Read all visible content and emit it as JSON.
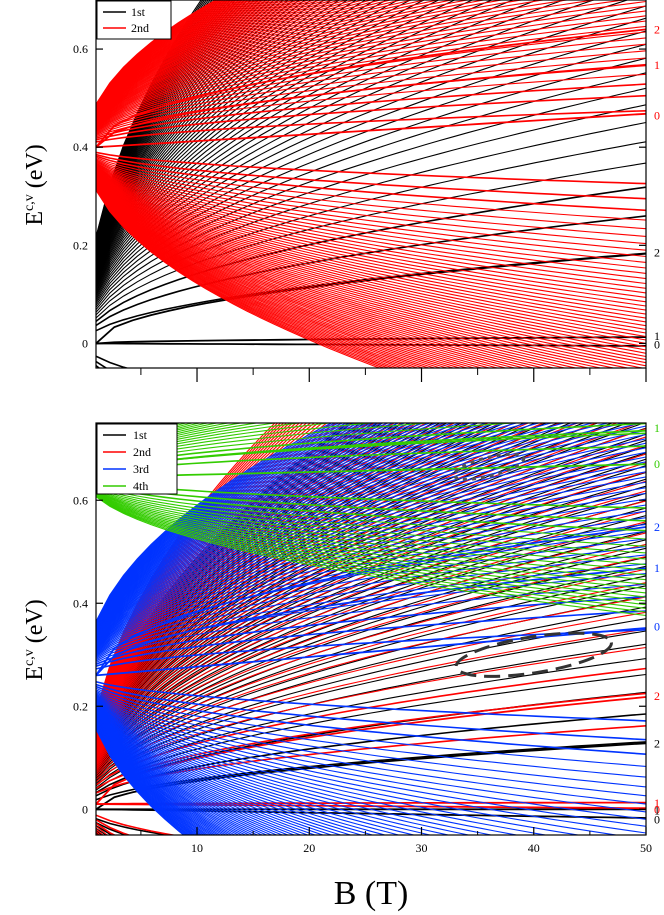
{
  "chart_data": [
    {
      "type": "line",
      "title": "",
      "xlabel": "",
      "ylabel": "E",
      "ylabel_sup": "c,v",
      "ylabel_unit": " (eV)",
      "xlim": [
        1,
        50
      ],
      "ylim": [
        -0.05,
        0.7
      ],
      "x_ticks_labeled": false,
      "y_ticks": [
        0,
        0.2,
        0.4,
        0.6
      ],
      "y_tick_labels": [
        "0",
        "0.2",
        "0.4",
        "0.6"
      ],
      "legend": {
        "position": "top-left",
        "entries": [
          {
            "name": "1st",
            "color": "#000000"
          },
          {
            "name": "2nd",
            "color": "#ff0000"
          }
        ]
      },
      "series": [
        {
          "name": "1st",
          "color": "#000000",
          "onset": 0.0,
          "coef": 0.026,
          "n_max": 70,
          "levels_at_50T": [
            {
              "n": 0,
              "E": -0.005
            },
            {
              "n": 1,
              "E": 0.013
            },
            {
              "n": 2,
              "E": 0.183
            }
          ]
        },
        {
          "name": "2nd",
          "color": "#ff0000",
          "onset": 0.4,
          "coef": 0.0105,
          "n_max": 70,
          "levels_at_50T": [
            {
              "n": 0,
              "E": 0.468
            },
            {
              "n": 1,
              "E": 0.568
            },
            {
              "n": 2,
              "E": 0.64
            }
          ]
        }
      ],
      "index_labels": [
        {
          "text": "2",
          "color": "#ff0000",
          "y": 0.64
        },
        {
          "text": "1",
          "color": "#ff0000",
          "y": 0.568
        },
        {
          "text": "0",
          "color": "#ff0000",
          "y": 0.465
        },
        {
          "text": "2",
          "color": "#000000",
          "y": 0.185
        },
        {
          "text": "1",
          "color": "#000000",
          "y": 0.015
        },
        {
          "text": "0",
          "color": "#000000",
          "y": -0.002
        }
      ]
    },
    {
      "type": "line",
      "title": "",
      "xlabel": "B (T)",
      "ylabel": "E",
      "ylabel_sup": "c,v",
      "ylabel_unit": " (eV)",
      "xlim": [
        1,
        50
      ],
      "ylim": [
        -0.05,
        0.75
      ],
      "x_ticks": [
        10,
        20,
        30,
        40,
        50
      ],
      "x_tick_labels": [
        "10",
        "20",
        "30",
        "40",
        "50"
      ],
      "y_ticks": [
        0,
        0.2,
        0.4,
        0.6
      ],
      "y_tick_labels": [
        "0",
        "0.2",
        "0.4",
        "0.6"
      ],
      "legend": {
        "position": "top-left",
        "entries": [
          {
            "name": "1st",
            "color": "#000000"
          },
          {
            "name": "2nd",
            "color": "#ff0000"
          },
          {
            "name": "3rd",
            "color": "#0033ff"
          },
          {
            "name": "4th",
            "color": "#33cc00"
          }
        ]
      },
      "series": [
        {
          "name": "1st",
          "color": "#000000",
          "onset": 0.0,
          "coef": 0.0185,
          "n_max": 70,
          "levels_at_50T": [
            {
              "n": 0,
              "E": -0.017
            },
            {
              "n": 1,
              "E": 0.0
            },
            {
              "n": 2,
              "E": 0.128
            }
          ]
        },
        {
          "name": "2nd",
          "color": "#ff0000",
          "onset": 0.01,
          "coef": 0.0215,
          "n_max": 70,
          "levels_at_50T": [
            {
              "n": 0,
              "E": 0.002
            },
            {
              "n": 1,
              "E": 0.013
            },
            {
              "n": 2,
              "E": 0.218
            }
          ]
        },
        {
          "name": "3rd",
          "color": "#0033ff",
          "onset": 0.26,
          "coef": 0.0125,
          "n_max": 70,
          "levels_at_50T": [
            {
              "n": 0,
              "E": 0.352
            },
            {
              "n": 1,
              "E": 0.468
            },
            {
              "n": 2,
              "E": 0.548
            }
          ]
        },
        {
          "name": "4th",
          "color": "#33cc00",
          "onset": 0.645,
          "coef": 0.0085,
          "n_max": 20,
          "levels_at_50T": [
            {
              "n": 0,
              "E": 0.67
            },
            {
              "n": 1,
              "E": 0.735
            }
          ]
        }
      ],
      "index_labels": [
        {
          "text": "1",
          "color": "#33cc00",
          "y": 0.74
        },
        {
          "text": "0",
          "color": "#33cc00",
          "y": 0.67
        },
        {
          "text": "2",
          "color": "#0033ff",
          "y": 0.548
        },
        {
          "text": "1",
          "color": "#0033ff",
          "y": 0.468
        },
        {
          "text": "0",
          "color": "#0033ff",
          "y": 0.355
        },
        {
          "text": "2",
          "color": "#ff0000",
          "y": 0.22
        },
        {
          "text": "2",
          "color": "#000000",
          "y": 0.128
        },
        {
          "text": "1",
          "color": "#ff0000",
          "y": 0.012
        },
        {
          "text": "0",
          "color": "#ff0000",
          "y": 0.0
        },
        {
          "text": "1",
          "color": "#000000",
          "y": -0.002
        },
        {
          "text": "0",
          "color": "#000000",
          "y": -0.02
        }
      ],
      "annotations": [
        {
          "type": "dashed-ellipse",
          "color": "#333333",
          "cx": 40,
          "cy": 0.3,
          "rx": 7,
          "ry": 0.035,
          "angle_deg": -9
        },
        {
          "type": "dotted-ellipse",
          "color": "#555555",
          "cx": 36,
          "cy": 0.665,
          "rx": 3.2,
          "ry": 0.018,
          "angle_deg": -14
        }
      ]
    }
  ]
}
